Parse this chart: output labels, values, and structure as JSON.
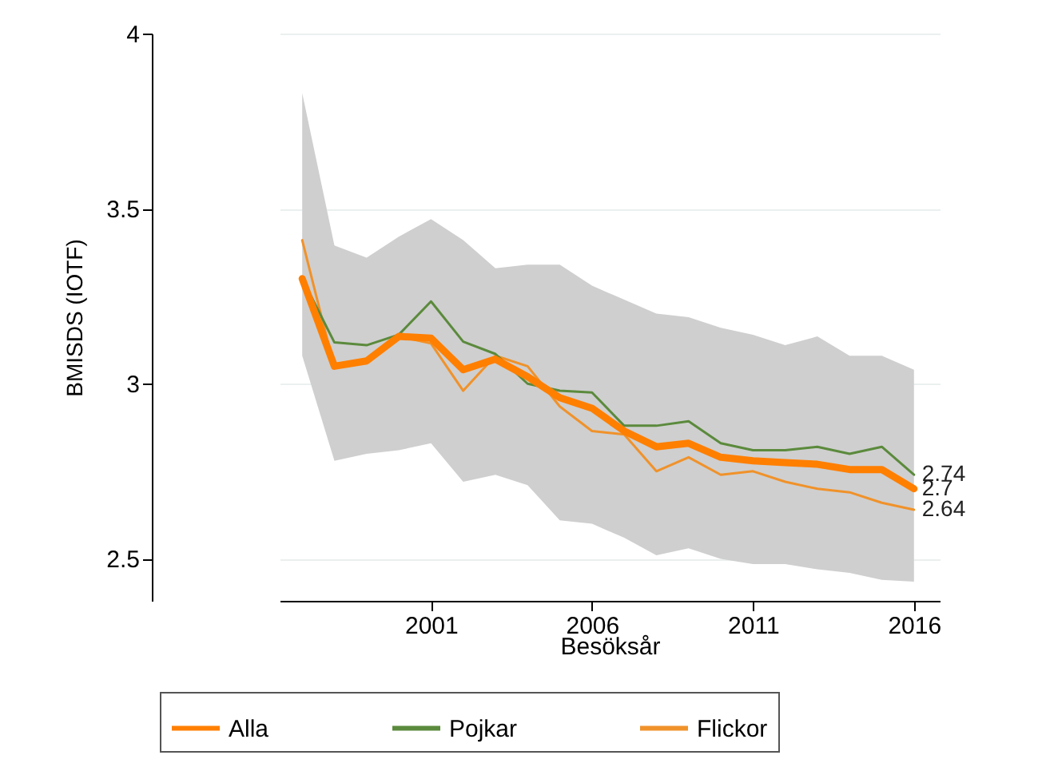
{
  "chart_data": {
    "type": "line",
    "xlabel": "Besöksår",
    "ylabel": "BMISDS (IOTF)",
    "x": [
      1997,
      1998,
      1999,
      2000,
      2001,
      2002,
      2003,
      2004,
      2005,
      2006,
      2007,
      2008,
      2009,
      2010,
      2011,
      2012,
      2013,
      2014,
      2015,
      2016
    ],
    "xlim": [
      1996.3,
      2016.8
    ],
    "xticks": [
      2001,
      2006,
      2011,
      2016
    ],
    "ylim": [
      2.38,
      4
    ],
    "yticks": [
      {
        "value": 2.5,
        "label": "2.5"
      },
      3,
      {
        "value": 3.5,
        "label": "3.5"
      },
      4
    ],
    "grid": "y",
    "legend": "bottom",
    "series": [
      {
        "name": "Alla",
        "color": "#ff7f00",
        "values": [
          3.3,
          3.05,
          3.065,
          3.135,
          3.13,
          3.04,
          3.07,
          3.02,
          2.96,
          2.93,
          2.865,
          2.82,
          2.83,
          2.79,
          2.78,
          2.775,
          2.77,
          2.755,
          2.755,
          2.7
        ],
        "lower": [
          3.08,
          2.78,
          2.8,
          2.81,
          2.83,
          2.72,
          2.74,
          2.71,
          2.61,
          2.6,
          2.56,
          2.51,
          2.53,
          2.5,
          2.485,
          2.485,
          2.47,
          2.46,
          2.44,
          2.435
        ],
        "upper": [
          3.83,
          3.395,
          3.36,
          3.42,
          3.47,
          3.41,
          3.33,
          3.34,
          3.34,
          3.28,
          3.24,
          3.2,
          3.19,
          3.16,
          3.14,
          3.11,
          3.135,
          3.08,
          3.08,
          3.04
        ],
        "value_labels": [
          null,
          null,
          null,
          null,
          null,
          null,
          null,
          null,
          null,
          null,
          null,
          null,
          null,
          null,
          null,
          null,
          null,
          null,
          null,
          "2.7"
        ]
      },
      {
        "name": "Pojkar",
        "color": "#5b8a3c",
        "values": [
          3.3,
          3.118,
          3.11,
          3.14,
          3.235,
          3.12,
          3.085,
          3.0,
          2.98,
          2.975,
          2.88,
          2.88,
          2.893,
          2.83,
          2.81,
          2.81,
          2.82,
          2.8,
          2.82,
          2.74
        ],
        "value_labels": [
          null,
          null,
          null,
          null,
          null,
          null,
          null,
          null,
          null,
          null,
          null,
          null,
          null,
          null,
          null,
          null,
          null,
          null,
          null,
          "2.74"
        ]
      },
      {
        "name": "Flickor",
        "color": "#f0922a",
        "values": [
          3.41,
          3.045,
          3.065,
          3.135,
          3.115,
          2.98,
          3.08,
          3.05,
          2.935,
          2.865,
          2.855,
          2.75,
          2.79,
          2.74,
          2.75,
          2.72,
          2.7,
          2.69,
          2.66,
          2.64
        ],
        "value_labels": [
          null,
          null,
          null,
          null,
          null,
          null,
          null,
          null,
          null,
          null,
          null,
          null,
          null,
          null,
          null,
          null,
          null,
          null,
          null,
          "2.64"
        ]
      }
    ]
  }
}
